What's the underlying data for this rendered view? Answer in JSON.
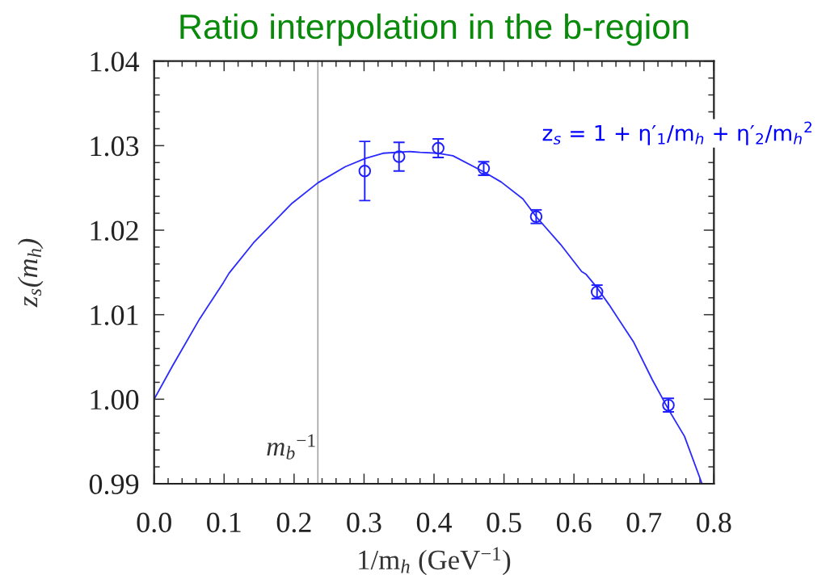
{
  "chart_data": {
    "type": "scatter",
    "title": "Ratio interpolation in the b-region",
    "xlabel": "1/m$_{h}$ (GeV$^{−1}$)",
    "ylabel": "z$_{s}$(m$_{h}$)",
    "annotations": [
      "z$_{s}$ = 1 + η′$_{1}$/m$_{h}$ + η′$_{2}$/m$_{h}$$^{2}$"
    ],
    "xlim": [
      0,
      0.8
    ],
    "ylim": [
      0.99,
      1.04
    ],
    "xticks": [
      {
        "value": 0,
        "label": "0.0"
      },
      {
        "value": 0.02,
        "label": null
      },
      {
        "value": 0.04,
        "label": null
      },
      {
        "value": 0.06,
        "label": null
      },
      {
        "value": 0.08,
        "label": null
      },
      0.1,
      {
        "value": 0.12,
        "label": null
      },
      {
        "value": 0.14,
        "label": null
      },
      {
        "value": 0.16,
        "label": null
      },
      {
        "value": 0.18,
        "label": null
      },
      0.2,
      {
        "value": 0.22,
        "label": null
      },
      {
        "value": 0.24,
        "label": null
      },
      {
        "value": 0.26,
        "label": null
      },
      {
        "value": 0.28,
        "label": null
      },
      0.3,
      {
        "value": 0.32,
        "label": null
      },
      {
        "value": 0.34,
        "label": null
      },
      {
        "value": 0.36,
        "label": null
      },
      {
        "value": 0.38,
        "label": null
      },
      0.4,
      {
        "value": 0.42,
        "label": null
      },
      {
        "value": 0.44,
        "label": null
      },
      {
        "value": 0.46,
        "label": null
      },
      {
        "value": 0.48,
        "label": null
      },
      0.5,
      {
        "value": 0.52,
        "label": null
      },
      {
        "value": 0.54,
        "label": null
      },
      {
        "value": 0.56,
        "label": null
      },
      {
        "value": 0.58,
        "label": null
      },
      0.6,
      {
        "value": 0.62,
        "label": null
      },
      {
        "value": 0.64,
        "label": null
      },
      {
        "value": 0.66,
        "label": null
      },
      {
        "value": 0.68,
        "label": null
      },
      0.7,
      {
        "value": 0.72,
        "label": null
      },
      {
        "value": 0.74,
        "label": null
      },
      {
        "value": 0.76,
        "label": null
      },
      {
        "value": 0.78,
        "label": null
      },
      0.8
    ],
    "yticks": [
      0.99,
      {
        "value": 0.992,
        "label": null
      },
      {
        "value": 0.994,
        "label": null
      },
      {
        "value": 0.996,
        "label": null
      },
      {
        "value": 0.998,
        "label": null
      },
      {
        "value": 1,
        "label": "1.00"
      },
      {
        "value": 1.002,
        "label": null
      },
      {
        "value": 1.004,
        "label": null
      },
      {
        "value": 1.006,
        "label": null
      },
      {
        "value": 1.008,
        "label": null
      },
      1.01,
      {
        "value": 1.012,
        "label": null
      },
      {
        "value": 1.014,
        "label": null
      },
      {
        "value": 1.016,
        "label": null
      },
      {
        "value": 1.018,
        "label": null
      },
      1.02,
      {
        "value": 1.022,
        "label": null
      },
      {
        "value": 1.024,
        "label": null
      },
      {
        "value": 1.026,
        "label": null
      },
      {
        "value": 1.028,
        "label": null
      },
      1.03,
      {
        "value": 1.032,
        "label": null
      },
      {
        "value": 1.034,
        "label": null
      },
      {
        "value": 1.036,
        "label": null
      },
      {
        "value": 1.038,
        "label": null
      },
      1.04
    ],
    "ref_lines": [
      {
        "axis": "x",
        "value": 0.234,
        "label": "m$_{b}$$^{−1}$",
        "color": "#a0a0a0"
      }
    ],
    "series": [
      {
        "type": "line",
        "color": "#2a2aff",
        "line_style": "solid",
        "x": [
          0.0,
          0.026,
          0.065,
          0.099,
          0.107,
          0.142,
          0.176,
          0.196,
          0.234,
          0.273,
          0.302,
          0.327,
          0.365,
          0.38,
          0.406,
          0.427,
          0.471,
          0.496,
          0.527,
          0.546,
          0.581,
          0.611,
          0.617,
          0.633,
          0.65,
          0.685,
          0.712,
          0.735,
          0.758,
          0.783
        ],
        "values": [
          1.0,
          1.0039,
          1.0095,
          1.0138,
          1.0149,
          1.0185,
          1.0214,
          1.0231,
          1.0256,
          1.0275,
          1.0285,
          1.0291,
          1.0293,
          1.0292,
          1.0291,
          1.0288,
          1.0269,
          1.0257,
          1.0237,
          1.0216,
          1.0183,
          1.0151,
          1.0148,
          1.0132,
          1.0112,
          1.0068,
          1.0023,
          0.9988,
          0.9956,
          0.99
        ]
      },
      {
        "color": "#1f1fff",
        "marker": "circle",
        "x": [
          0.301,
          0.35,
          0.406,
          0.471,
          0.546,
          0.633,
          0.735
        ],
        "values": [
          1.027,
          1.0287,
          1.0297,
          1.0273,
          1.0216,
          1.0127,
          0.9993
        ],
        "errors": [
          0.0035,
          0.0017,
          0.0011,
          0.0008,
          0.0008,
          0.0008,
          0.0008
        ]
      }
    ]
  }
}
